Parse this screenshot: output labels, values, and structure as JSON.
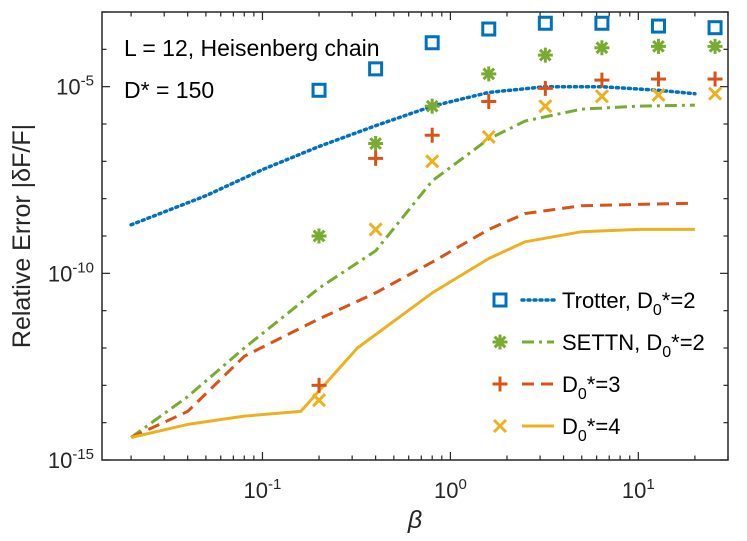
{
  "chart_data": {
    "type": "line",
    "xscale": "log",
    "yscale": "log",
    "xlim": [
      0.014,
      30
    ],
    "ylim": [
      1e-15,
      0.001
    ],
    "xlabel": "β",
    "ylabel": "Relative Error |δF/F|",
    "x_ticks": [
      {
        "value": 0.1,
        "base": "10",
        "exp": "-1"
      },
      {
        "value": 1,
        "base": "10",
        "exp": "0"
      },
      {
        "value": 10,
        "base": "10",
        "exp": "1"
      }
    ],
    "y_ticks": [
      {
        "value": 1e-15,
        "base": "10",
        "exp": "-15"
      },
      {
        "value": 1e-10,
        "base": "10",
        "exp": "-10"
      },
      {
        "value": 1e-05,
        "base": "10",
        "exp": "-5"
      }
    ],
    "annotations": [
      "L = 12, Heisenberg chain",
      "D* = 150"
    ],
    "series": [
      {
        "name": "Trotter, D0*=2",
        "kind": "markers",
        "marker": "square",
        "color": "#0072BD",
        "x": [
          0.2,
          0.4,
          0.8,
          1.6,
          3.2,
          6.4,
          12.8,
          25.6
        ],
        "y": [
          8e-06,
          3e-05,
          0.00015,
          0.00035,
          0.0005,
          0.0005,
          0.00042,
          0.00038
        ]
      },
      {
        "name": "Trotter, D0*=2",
        "kind": "line",
        "dash": "dotted",
        "color": "#0072BD",
        "x": [
          0.02,
          0.05,
          0.1,
          0.2,
          0.4,
          0.8,
          1.6,
          3.2,
          6.4,
          12.8,
          20
        ],
        "y": [
          2e-09,
          1.2e-08,
          6e-08,
          2.5e-07,
          9e-07,
          3e-06,
          7e-06,
          1e-05,
          1e-05,
          8e-06,
          6.5e-06
        ]
      },
      {
        "name": "SETTN, D0*=2",
        "kind": "markers",
        "marker": "asterisk",
        "color": "#77AC30",
        "x": [
          0.2,
          0.4,
          0.8,
          1.6,
          3.2,
          6.4,
          12.8,
          25.6
        ],
        "y": [
          1e-09,
          3e-07,
          3e-06,
          2.2e-05,
          7e-05,
          0.00011,
          0.00012,
          0.00012
        ]
      },
      {
        "name": "SETTN, D0*=2",
        "kind": "line",
        "dash": "dashdot",
        "color": "#77AC30",
        "x": [
          0.02,
          0.04,
          0.08,
          0.2,
          0.4,
          0.8,
          1.6,
          2.5,
          5,
          10,
          20
        ],
        "y": [
          4e-15,
          5e-14,
          1e-12,
          4e-11,
          4e-10,
          3e-08,
          4e-07,
          1.2e-06,
          2.5e-06,
          3e-06,
          3.2e-06
        ]
      },
      {
        "name": "D0*=3",
        "kind": "markers",
        "marker": "plus",
        "color": "#D95319",
        "x": [
          0.2,
          0.4,
          0.8,
          1.6,
          3.2,
          6.4,
          12.8,
          25.6
        ],
        "y": [
          1e-13,
          1.2e-07,
          5e-07,
          4e-06,
          9e-06,
          1.5e-05,
          1.6e-05,
          1.6e-05
        ]
      },
      {
        "name": "D0*=3",
        "kind": "line",
        "dash": "dashed",
        "color": "#D95319",
        "x": [
          0.02,
          0.04,
          0.08,
          0.2,
          0.4,
          0.8,
          1.6,
          2.5,
          5,
          10,
          20
        ],
        "y": [
          4e-15,
          2e-14,
          6e-13,
          6e-12,
          3e-11,
          2e-10,
          1.5e-09,
          4e-09,
          6.5e-09,
          7e-09,
          7.5e-09
        ]
      },
      {
        "name": "D0*=4",
        "kind": "markers",
        "marker": "cross",
        "color": "#EDB120",
        "x": [
          0.2,
          0.4,
          0.8,
          1.6,
          3.2,
          6.4,
          12.8,
          25.6
        ],
        "y": [
          4e-14,
          1.5e-09,
          1e-07,
          4.5e-07,
          3e-06,
          5.5e-06,
          6e-06,
          6.5e-06
        ]
      },
      {
        "name": "D0*=4",
        "kind": "line",
        "dash": "solid",
        "color": "#EDB120",
        "x": [
          0.02,
          0.04,
          0.08,
          0.16,
          0.32,
          0.8,
          1.6,
          2.5,
          5,
          10,
          20
        ],
        "y": [
          4e-15,
          9e-15,
          1.5e-14,
          2e-14,
          1e-12,
          3e-11,
          2.5e-10,
          7e-10,
          1.3e-09,
          1.5e-09,
          1.5e-09
        ]
      }
    ],
    "legend": {
      "placement": "bottom-right",
      "entries": [
        {
          "label": "Trotter, D",
          "sub": "0",
          "rest": "*=2",
          "marker": "square",
          "dash": "dotted",
          "color": "#0072BD"
        },
        {
          "label": "SETTN, D",
          "sub": "0",
          "rest": "*=2",
          "marker": "asterisk",
          "dash": "dashdot",
          "color": "#77AC30"
        },
        {
          "label": "D",
          "sub": "0",
          "rest": "*=3",
          "marker": "plus",
          "dash": "dashed",
          "color": "#D95319"
        },
        {
          "label": "D",
          "sub": "0",
          "rest": "*=4",
          "marker": "cross",
          "dash": "solid",
          "color": "#EDB120"
        }
      ]
    }
  }
}
